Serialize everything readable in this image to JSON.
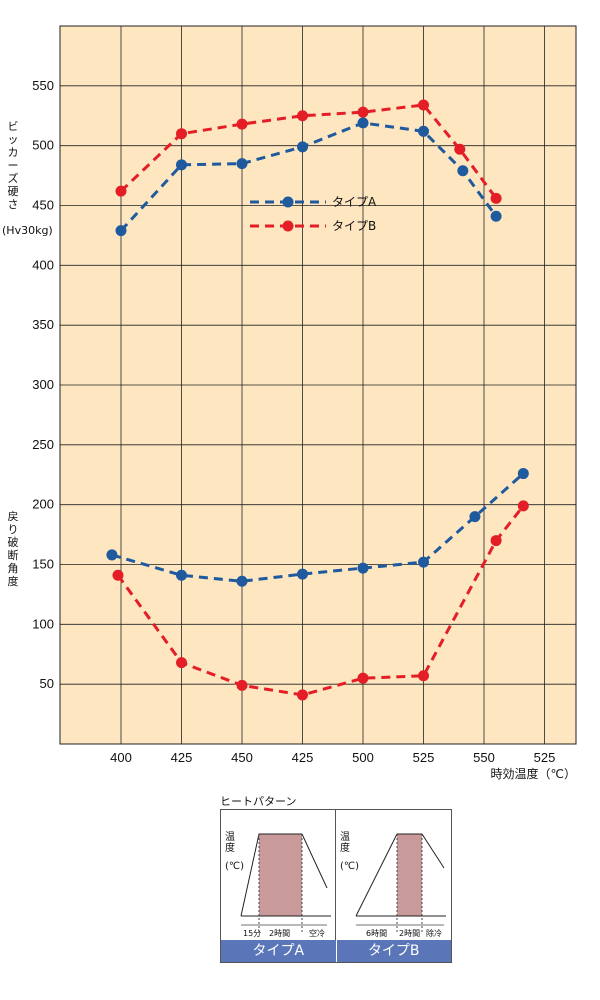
{
  "chart_data": {
    "type": "line",
    "background": "#fde6c0",
    "grid": true,
    "x_tick_labels": [
      "400",
      "425",
      "450",
      "425",
      "500",
      "525",
      "550",
      "525"
    ],
    "x_unit_label": "時効温度（℃）",
    "y_ticks": [
      "50",
      "100",
      "150",
      "200",
      "250",
      "300",
      "350",
      "400",
      "450",
      "500",
      "550"
    ],
    "ylim": [
      0,
      600
    ],
    "y_label_top": [
      "ビ",
      "ッ",
      "カ",
      "ー",
      "ズ",
      "硬",
      "さ"
    ],
    "y_label_top_unit": "(Hv30kg)",
    "y_label_bottom": [
      "戻",
      "り",
      "破",
      "断",
      "角",
      "度"
    ],
    "legend_placement": "center-top",
    "series": [
      {
        "name": "タイプA",
        "color": "#1f5a9e",
        "group": "hardness",
        "points": [
          [
            0,
            429
          ],
          [
            1,
            484
          ],
          [
            2,
            485
          ],
          [
            3,
            499
          ],
          [
            4,
            519
          ],
          [
            5,
            512
          ],
          [
            5.65,
            479
          ],
          [
            6.2,
            441
          ]
        ]
      },
      {
        "name": "タイプB",
        "color": "#e41e26",
        "group": "hardness",
        "points": [
          [
            0,
            462
          ],
          [
            1,
            510
          ],
          [
            2,
            518
          ],
          [
            3,
            525
          ],
          [
            4,
            528
          ],
          [
            5,
            534
          ],
          [
            5.6,
            497
          ],
          [
            6.2,
            456
          ]
        ]
      },
      {
        "name": "タイプA",
        "color": "#1f5a9e",
        "group": "bend",
        "points": [
          [
            -0.15,
            158
          ],
          [
            1,
            141
          ],
          [
            2,
            136
          ],
          [
            3,
            142
          ],
          [
            4,
            147
          ],
          [
            5,
            152
          ],
          [
            5.85,
            190
          ],
          [
            6.65,
            226
          ]
        ]
      },
      {
        "name": "タイプB",
        "color": "#e41e26",
        "group": "bend",
        "points": [
          [
            -0.05,
            141
          ],
          [
            1,
            68
          ],
          [
            2,
            49
          ],
          [
            3,
            41
          ],
          [
            4,
            55
          ],
          [
            5,
            57
          ],
          [
            6.2,
            170
          ],
          [
            6.65,
            199
          ]
        ]
      }
    ]
  },
  "heat_pattern": {
    "title": "ヒートパターン",
    "y_label": "温度",
    "y_unit": "(℃)",
    "fill_color": "#c99a9a",
    "type_a": {
      "tab_label": "タイプA",
      "ticks": [
        "15分",
        "2時間",
        "空冷"
      ]
    },
    "type_b": {
      "tab_label": "タイプB",
      "ticks": [
        "6時間",
        "2時間",
        "除冷"
      ]
    }
  }
}
